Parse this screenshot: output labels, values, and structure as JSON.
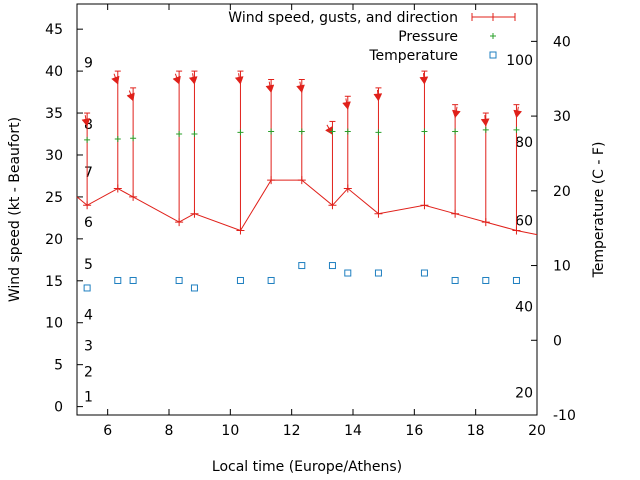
{
  "chart_data": {
    "type": "line",
    "xlabel": "Local time (Europe/Athens)",
    "ylabel": "Wind speed (kt - Beaufort)",
    "y2label": "Temperature (C - F)",
    "xlim": [
      5,
      20
    ],
    "ylim": [
      -1,
      48
    ],
    "y2lim": [
      -10,
      45
    ],
    "x_ticks": [
      6,
      8,
      10,
      12,
      14,
      16,
      18,
      20
    ],
    "y_ticks": [
      0,
      5,
      10,
      15,
      20,
      25,
      30,
      35,
      40,
      45
    ],
    "y2_ticks": [
      -10,
      0,
      10,
      20,
      30,
      40
    ],
    "beaufort_labels": [
      {
        "text": "1",
        "y": 1.2
      },
      {
        "text": "2",
        "y": 4.2
      },
      {
        "text": "3",
        "y": 7.3
      },
      {
        "text": "4",
        "y": 11.0
      },
      {
        "text": "5",
        "y": 17.0
      },
      {
        "text": "6",
        "y": 22.0
      },
      {
        "text": "7",
        "y": 28.0
      },
      {
        "text": "8",
        "y": 33.7
      },
      {
        "text": "9",
        "y": 41.0
      }
    ],
    "fahrenheit_labels": [
      {
        "text": "20",
        "y2": -7
      },
      {
        "text": "40",
        "y2": 4.5
      },
      {
        "text": "60",
        "y2": 16
      },
      {
        "text": "80",
        "y2": 26.5
      },
      {
        "text": "100",
        "y2": 37.5
      }
    ],
    "legend": [
      "Wind speed, gusts, and direction",
      "Pressure",
      "Temperature"
    ],
    "colors": {
      "wind": "#e0201a",
      "pressure": "#2aa02a",
      "temperature": "#1f7fc0"
    },
    "series": [
      {
        "name": "Wind speed, gusts, and direction",
        "x": [
          5.0,
          5.33,
          6.33,
          6.83,
          8.33,
          8.83,
          10.33,
          11.33,
          12.33,
          13.33,
          13.83,
          14.83,
          16.33,
          17.33,
          18.33,
          19.33,
          20.0
        ],
        "y": [
          25,
          24,
          26,
          25,
          22,
          23,
          21,
          27,
          27,
          24,
          26,
          23,
          24,
          23,
          22,
          21,
          20.5
        ],
        "gusts": [
          null,
          35,
          40,
          38,
          40,
          40,
          40,
          39,
          39,
          34,
          37,
          38,
          40,
          36,
          35,
          36,
          null
        ],
        "direction_deg": [
          null,
          350,
          340,
          340,
          340,
          350,
          350,
          350,
          350,
          330,
          350,
          355,
          355,
          10,
          355,
          10,
          null
        ]
      },
      {
        "name": "Pressure",
        "x": [
          5.33,
          6.33,
          6.83,
          8.33,
          8.83,
          10.33,
          11.33,
          12.33,
          13.33,
          13.83,
          14.83,
          16.33,
          17.33,
          18.33,
          19.33
        ],
        "y": [
          31.8,
          31.9,
          32.0,
          32.5,
          32.5,
          32.7,
          32.8,
          32.8,
          32.8,
          32.8,
          32.7,
          32.8,
          32.8,
          33.0,
          33.0
        ]
      },
      {
        "name": "Temperature",
        "x": [
          5.33,
          6.33,
          6.83,
          8.33,
          8.83,
          10.33,
          11.33,
          12.33,
          13.33,
          13.83,
          14.83,
          16.33,
          17.33,
          18.33,
          19.33
        ],
        "y2": [
          7,
          8,
          8,
          8,
          7,
          8,
          8,
          10,
          10,
          9,
          9,
          9,
          8,
          8,
          8
        ]
      }
    ]
  }
}
